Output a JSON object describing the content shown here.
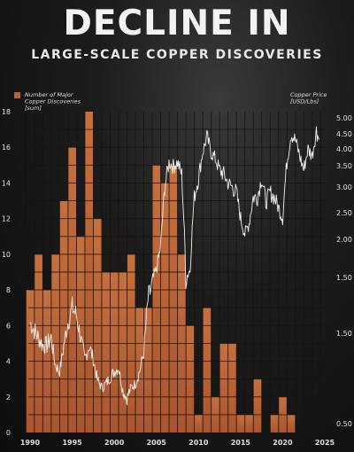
{
  "title": "DECLINE IN",
  "subtitle": "LARGE-SCALE COPPER DISCOVERIES",
  "chart_data": {
    "type": "bar",
    "x": [
      1990,
      1991,
      1992,
      1993,
      1994,
      1995,
      1996,
      1997,
      1998,
      1999,
      2000,
      2001,
      2002,
      2003,
      2004,
      2005,
      2006,
      2007,
      2008,
      2009,
      2010,
      2011,
      2012,
      2013,
      2014,
      2015,
      2016,
      2017,
      2018,
      2019,
      2020,
      2021,
      2022,
      2023,
      2024
    ],
    "series": [
      {
        "name": "Number of Major Copper Discoveries [sum]",
        "type": "bar",
        "axis": "left",
        "values": [
          8,
          10,
          8,
          10,
          13,
          16,
          11,
          18,
          12,
          9,
          9,
          9,
          10,
          7,
          7,
          15,
          14,
          15,
          10,
          6,
          1,
          7,
          2,
          5,
          5,
          1,
          1,
          3,
          0,
          1,
          2,
          1,
          0,
          0,
          0
        ]
      },
      {
        "name": "Copper Price [USD/Lbs]",
        "type": "line",
        "axis": "right",
        "x": [
          1990,
          1990.5,
          1991,
          1991.5,
          1992,
          1992.5,
          1993,
          1993.5,
          1994,
          1994.5,
          1995,
          1995.5,
          1996,
          1996.5,
          1997,
          1997.5,
          1998,
          1998.5,
          1999,
          1999.5,
          2000,
          2000.5,
          2001,
          2001.5,
          2002,
          2002.5,
          2003,
          2003.5,
          2004,
          2004.5,
          2005,
          2005.5,
          2006,
          2006.5,
          2007,
          2007.5,
          2008,
          2008.5,
          2009,
          2009.5,
          2010,
          2010.5,
          2011,
          2011.5,
          2012,
          2012.5,
          2013,
          2013.5,
          2014,
          2014.5,
          2015,
          2015.5,
          2016,
          2016.5,
          2017,
          2017.5,
          2018,
          2018.5,
          2019,
          2019.5,
          2020,
          2020.5,
          2021,
          2021.5,
          2022,
          2022.5,
          2023,
          2023.5,
          2024,
          2024.3
        ],
        "values": [
          1.2,
          1.15,
          1.1,
          1.05,
          1.05,
          1.1,
          0.9,
          0.85,
          1.05,
          1.2,
          1.3,
          1.25,
          1.1,
          0.95,
          1.05,
          0.95,
          0.78,
          0.72,
          0.75,
          0.8,
          0.85,
          0.88,
          0.7,
          0.65,
          0.72,
          0.75,
          0.85,
          1.0,
          1.35,
          1.45,
          1.6,
          1.9,
          3.0,
          3.6,
          3.5,
          3.6,
          3.3,
          1.5,
          1.6,
          2.8,
          3.2,
          3.9,
          4.4,
          3.9,
          3.7,
          3.4,
          3.3,
          3.1,
          3.0,
          2.9,
          2.4,
          2.1,
          2.3,
          2.8,
          2.8,
          3.2,
          2.7,
          2.9,
          2.8,
          2.6,
          2.4,
          3.6,
          4.5,
          4.3,
          3.8,
          3.4,
          4.0,
          3.8,
          4.6,
          4.3
        ]
      }
    ],
    "left_axis": {
      "label": "Number of Major Copper Discoveries [sum]",
      "ticks": [
        0,
        2,
        4,
        6,
        8,
        10,
        12,
        14,
        16,
        18
      ],
      "range": [
        0,
        18
      ]
    },
    "right_axis": {
      "label": "Copper Price [USD/Lbs]",
      "tick_labels": [
        "0.50",
        "1.50",
        "1.50",
        "2.00",
        "2.50",
        "3.00",
        "3.50",
        "4.00",
        "4.50",
        "5.00"
      ],
      "scale": "nonlinear"
    },
    "x_ticks": [
      1990,
      1995,
      2000,
      2005,
      2010,
      2015,
      2020,
      2025
    ],
    "colors": {
      "bar": "#b8623a",
      "line": "#f0f0f0",
      "bar_grid": "#1a120d"
    }
  }
}
